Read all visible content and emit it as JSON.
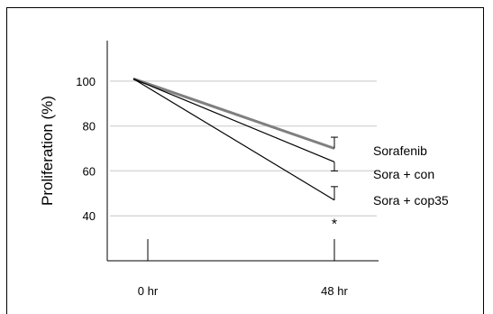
{
  "chart_data": {
    "type": "line",
    "title": "",
    "ylabel": "Proliferation (%)",
    "xlabel": "",
    "x": [
      "0 hr",
      "48 hr"
    ],
    "ylim": [
      20,
      118
    ],
    "yticks": [
      40,
      60,
      80,
      100
    ],
    "grid": true,
    "legend_position": "right",
    "series": [
      {
        "name": "Sorafenib",
        "values": [
          101,
          70
        ],
        "error_upper": [
          0,
          5
        ],
        "color": "#7f7f7f"
      },
      {
        "name": "Sora + con",
        "values": [
          101,
          64
        ],
        "error_lower": [
          0,
          4
        ],
        "color": "#000000"
      },
      {
        "name": "Sora + cop35",
        "values": [
          101,
          47
        ],
        "error_upper": [
          0,
          6
        ],
        "color": "#000000"
      }
    ],
    "annotations": [
      {
        "x": "48 hr",
        "y": 39,
        "text": "*"
      }
    ]
  }
}
